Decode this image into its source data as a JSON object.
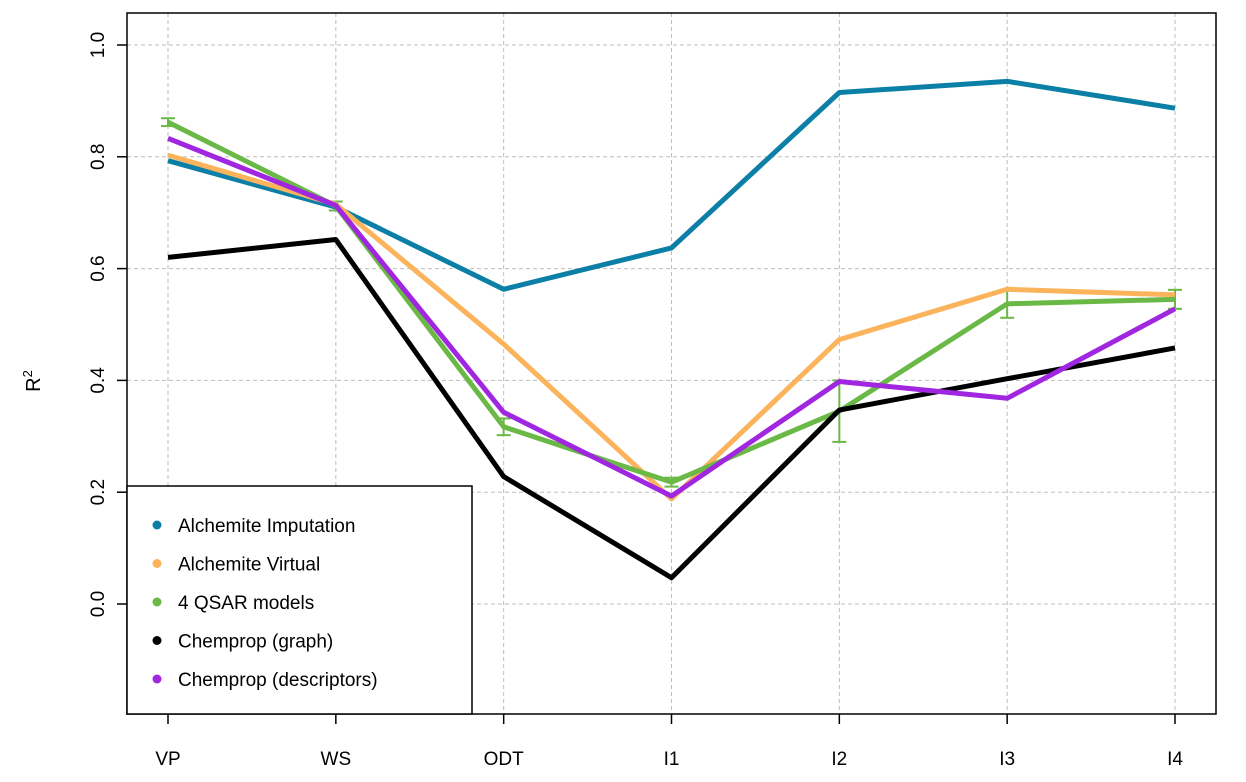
{
  "chart_data": {
    "type": "line",
    "title": "",
    "xlabel": "",
    "ylabel": "R",
    "ylabel_superscript": "2",
    "categories": [
      "VP",
      "WS",
      "ODT",
      "I1",
      "I2",
      "I3",
      "I4"
    ],
    "ylim": [
      -0.2,
      1.03
    ],
    "yticks": [
      {
        "value": 0.0,
        "label": "0.0"
      },
      {
        "value": 0.2,
        "label": "0.2"
      },
      {
        "value": 0.4,
        "label": "0.4"
      },
      {
        "value": 0.6,
        "label": "0.6"
      },
      {
        "value": 0.8,
        "label": "0.8"
      },
      {
        "value": 1.0,
        "label": "1.0"
      }
    ],
    "grid": true,
    "legend_position": "bottom-left",
    "series": [
      {
        "name": "Alchemite Imputation",
        "color": "#0b7fa6",
        "values": [
          0.793,
          0.71,
          0.563,
          0.637,
          0.915,
          0.935,
          0.887
        ]
      },
      {
        "name": "Alchemite Virtual",
        "color": "#fbb45c",
        "values": [
          0.803,
          0.715,
          0.465,
          0.188,
          0.473,
          0.563,
          0.553
        ]
      },
      {
        "name": "4 QSAR models",
        "color": "#6ab846",
        "values": [
          0.862,
          0.712,
          0.317,
          0.218,
          0.345,
          0.537,
          0.545
        ],
        "errors": [
          0.007,
          0.008,
          0.015,
          0.008,
          0.055,
          0.025,
          0.017
        ]
      },
      {
        "name": "Chemprop (graph)",
        "color": "#000000",
        "values": [
          0.62,
          0.652,
          0.228,
          0.047,
          0.347,
          0.403,
          0.458
        ]
      },
      {
        "name": "Chemprop (descriptors)",
        "color": "#a026e0",
        "values": [
          0.833,
          0.713,
          0.343,
          0.193,
          0.398,
          0.368,
          0.528
        ]
      }
    ]
  }
}
